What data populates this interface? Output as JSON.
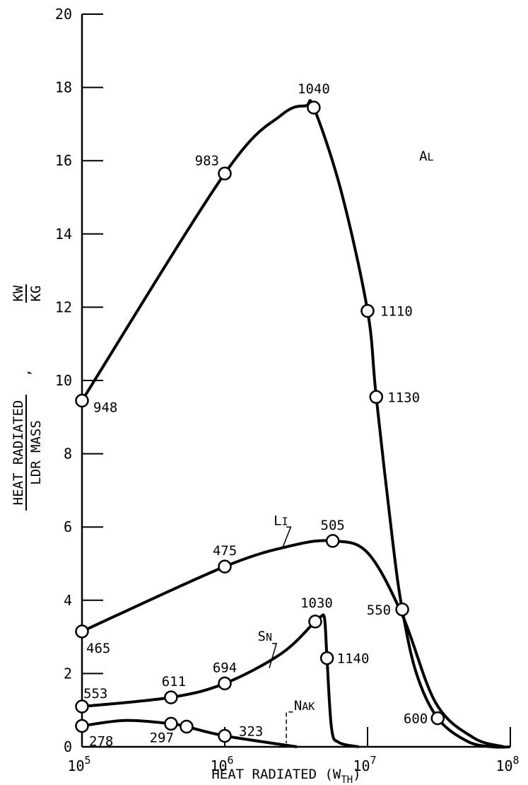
{
  "chart_data": {
    "type": "line",
    "xlabel": "HEAT RADIATED (W",
    "xlabel_sub": "TH",
    "xlabel_end": ")",
    "ylabel_numerator": "HEAT RADIATED",
    "ylabel_denominator": "LDR MASS",
    "ylabel_unit_numerator": "KW",
    "ylabel_unit_denominator": "KG",
    "x_scale": "log",
    "xlim": [
      100000,
      100000000
    ],
    "ylim": [
      0,
      20
    ],
    "x_ticks": [
      {
        "value": 100000,
        "base": "10",
        "exp": "5"
      },
      {
        "value": 1000000,
        "base": "10",
        "exp": "6"
      },
      {
        "value": 10000000,
        "base": "10",
        "exp": "7"
      },
      {
        "value": 100000000,
        "base": "10",
        "exp": "8"
      }
    ],
    "y_ticks": [
      "0",
      "2",
      "4",
      "6",
      "8",
      "10",
      "12",
      "14",
      "16",
      "18",
      "20"
    ],
    "grid": false,
    "series": [
      {
        "name": "AL",
        "points": [
          {
            "x": 100000,
            "y": 9.45,
            "label": "948"
          },
          {
            "x": 1000000,
            "y": 15.65,
            "label": "983"
          },
          {
            "x": 4200000,
            "y": 17.45,
            "label": "1040"
          },
          {
            "x": 10000000,
            "y": 11.9,
            "label": "1110"
          },
          {
            "x": 11500000,
            "y": 9.55,
            "label": "1130"
          },
          {
            "x": 17500000,
            "y": 3.75,
            "label": "550"
          },
          {
            "x": 31000000,
            "y": 0.78,
            "label": "600"
          }
        ],
        "curve_end": {
          "x": 75000000,
          "y": 0.0
        }
      },
      {
        "name": "LI",
        "points": [
          {
            "x": 100000,
            "y": 3.15,
            "label": "465"
          },
          {
            "x": 1000000,
            "y": 4.92,
            "label": "475"
          },
          {
            "x": 5700000,
            "y": 5.62,
            "label": "505"
          }
        ],
        "curve_end": {
          "x": 90000000,
          "y": 0.0
        }
      },
      {
        "name": "SN",
        "points": [
          {
            "x": 100000,
            "y": 1.1,
            "label": "553"
          },
          {
            "x": 420000,
            "y": 1.35,
            "label": "611"
          },
          {
            "x": 1000000,
            "y": 1.73,
            "label": "694"
          },
          {
            "x": 4300000,
            "y": 3.42,
            "label": "1030"
          },
          {
            "x": 5200000,
            "y": 2.42,
            "label": "1140"
          }
        ],
        "curve_end": {
          "x": 8700000,
          "y": 0.0
        }
      },
      {
        "name": "NAK",
        "points": [
          {
            "x": 100000,
            "y": 0.57,
            "label": "278"
          },
          {
            "x": 420000,
            "y": 0.63,
            "label": "297"
          },
          {
            "x": 540000,
            "y": 0.55,
            "label": ""
          },
          {
            "x": 1000000,
            "y": 0.3,
            "label": "323"
          }
        ],
        "curve_end": {
          "x": 3200000,
          "y": 0.0
        }
      }
    ]
  }
}
